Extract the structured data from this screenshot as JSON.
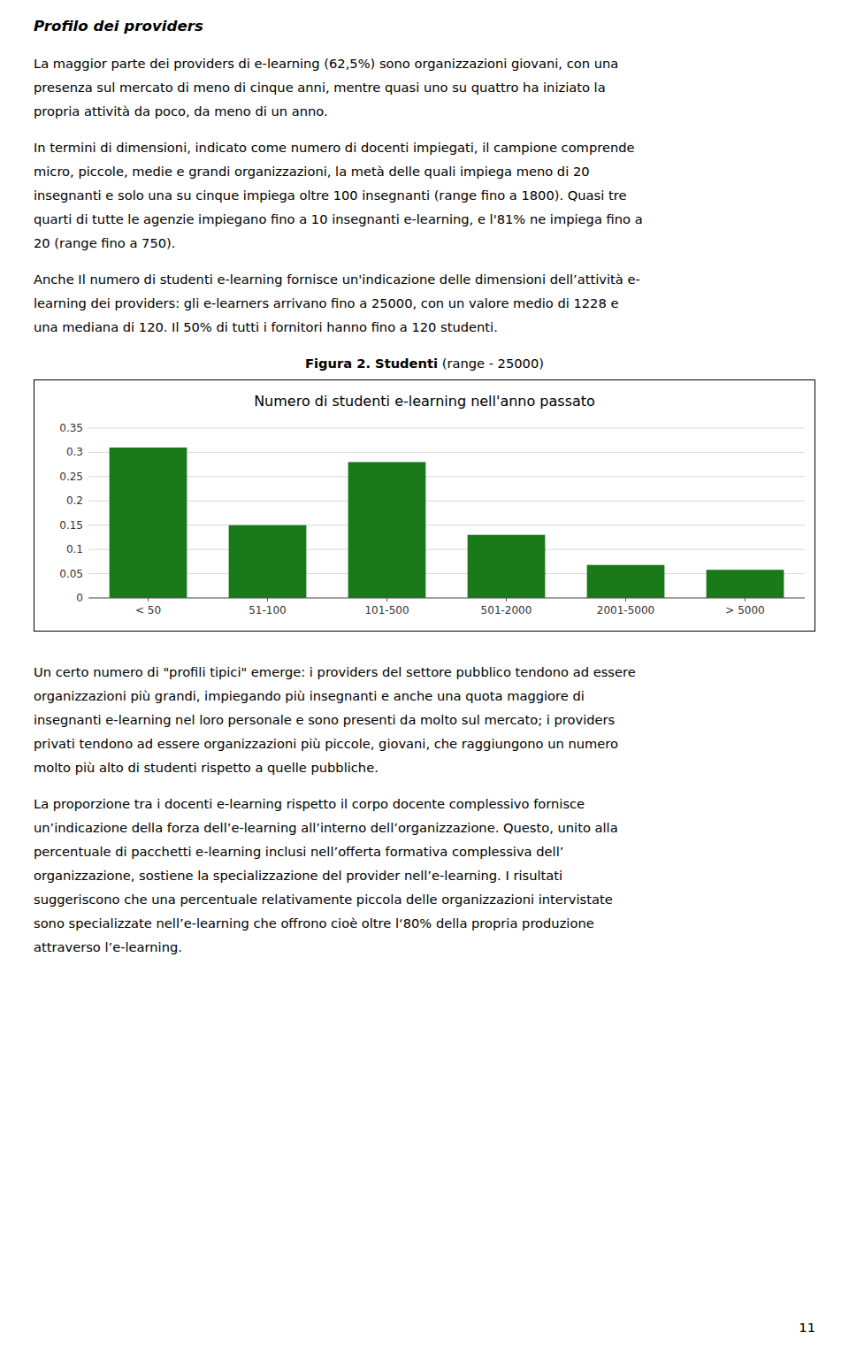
{
  "page": {
    "header": "Profilo dei providers",
    "paragraphs_before": [
      [
        "La maggior parte dei providers di e-learning (62,5%) sono organizzazioni giovani, con una",
        "presenza sul mercato di meno di cinque anni, mentre quasi uno su quattro ha iniziato la",
        "propria attività da poco, da meno di un anno."
      ],
      [
        "In termini di dimensioni, indicato come numero di docenti impiegati, il campione comprende",
        "micro, piccole, medie e grandi organizzazioni, la metà delle quali impiega meno di 20",
        "insegnanti e solo una su cinque impiega oltre 100 insegnanti (range fino a 1800). Quasi tre",
        "quarti di tutte le agenzie impiegano fino a 10 insegnanti e-learning, e l'81% ne impiega fino a",
        "20 (range fino a 750)."
      ],
      [
        "Anche Il numero di studenti e-learning fornisce un'indicazione delle dimensioni dell’attività e-",
        "learning dei providers: gli e-learners arrivano fino a 25000, con un valore medio di 1228 e",
        "una mediana di 120. Il 50% di tutti i fornitori hanno fino a 120 studenti."
      ]
    ],
    "figure_label": [
      "Figura 2. Studenti",
      " (range - 25000)"
    ],
    "paragraphs_after": [
      [
        "Un certo numero di \"profili tipici\" emerge: i providers del settore pubblico tendono ad essere",
        "organizzazioni più grandi, impiegando più insegnanti e anche una quota maggiore di",
        "insegnanti e-learning nel loro personale e sono presenti da molto sul mercato; i providers",
        "privati tendono ad essere organizzazioni più piccole, giovani, che raggiungono un numero",
        "molto più alto di studenti rispetto a quelle pubbliche."
      ],
      [
        "La proporzione tra i docenti e-learning rispetto il corpo docente complessivo fornisce",
        "un’indicazione della forza dell’e-learning all’interno dell’organizzazione. Questo, unito alla",
        "percentuale di pacchetti e-learning inclusi nell’offerta formativa complessiva dell’",
        "organizzazione, sostiene la specializzazione del provider nell’e-learning. I risultati",
        "suggeriscono che una percentuale relativamente piccola delle organizzazioni intervistate",
        "sono specializzate nell’e-learning che offrono cioè oltre l‘80% della propria produzione",
        "attraverso l’e-learning."
      ]
    ],
    "page_number": "11"
  },
  "chart_data": {
    "type": "bar",
    "title": "Numero di studenti e-learning nell'anno passato",
    "categories": [
      "< 50",
      "51-100",
      "101-500",
      "501-2000",
      "2001-5000",
      "> 5000"
    ],
    "values": [
      0.31,
      0.15,
      0.28,
      0.13,
      0.068,
      0.058
    ],
    "color": "#1a7a1a",
    "ylim": [
      0,
      0.35
    ],
    "yticks": [
      0,
      0.05,
      0.1,
      0.15,
      0.2,
      0.25,
      0.3,
      0.35
    ],
    "grid": true
  }
}
